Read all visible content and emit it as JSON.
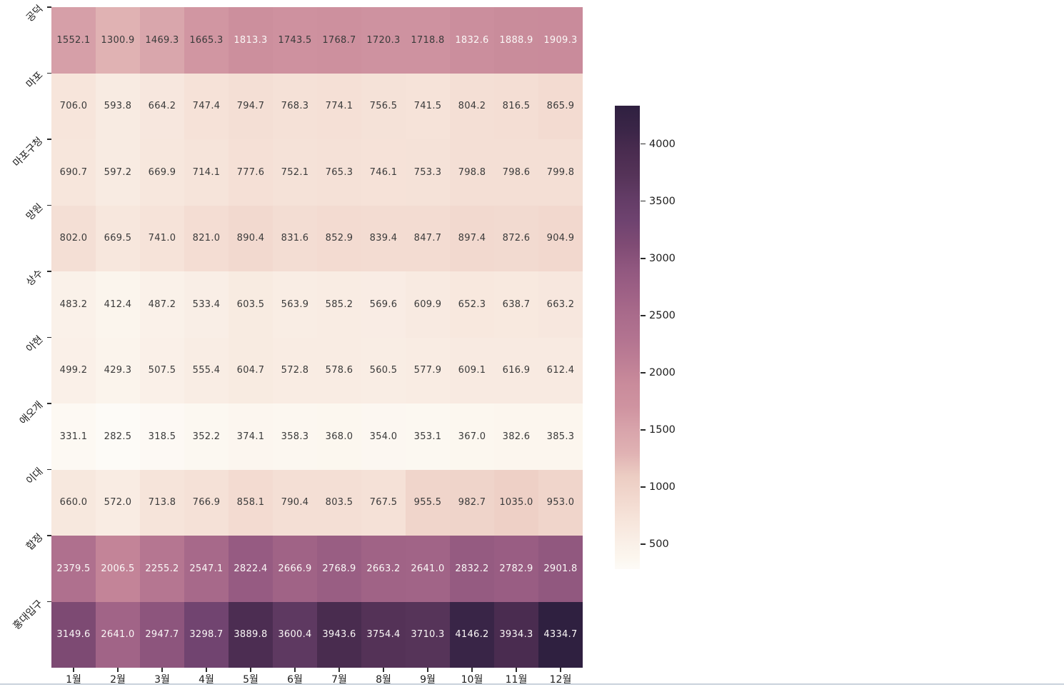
{
  "chart_data": {
    "type": "heatmap",
    "x_categories": [
      "1월",
      "2월",
      "3월",
      "4월",
      "5월",
      "6월",
      "7월",
      "8월",
      "9월",
      "10월",
      "11월",
      "12월"
    ],
    "y_categories": [
      "공덕",
      "마포",
      "마포구청",
      "망원",
      "상수",
      "아현",
      "애오개",
      "이대",
      "합정",
      "홍대입구"
    ],
    "values": [
      [
        1552.1,
        1300.9,
        1469.3,
        1665.3,
        1813.3,
        1743.5,
        1768.7,
        1720.3,
        1718.8,
        1832.6,
        1888.9,
        1909.3
      ],
      [
        706.0,
        593.8,
        664.2,
        747.4,
        794.7,
        768.3,
        774.1,
        756.5,
        741.5,
        804.2,
        816.5,
        865.9
      ],
      [
        690.7,
        597.2,
        669.9,
        714.1,
        777.6,
        752.1,
        765.3,
        746.1,
        753.3,
        798.8,
        798.6,
        799.8
      ],
      [
        802.0,
        669.5,
        741.0,
        821.0,
        890.4,
        831.6,
        852.9,
        839.4,
        847.7,
        897.4,
        872.6,
        904.9
      ],
      [
        483.2,
        412.4,
        487.2,
        533.4,
        603.5,
        563.9,
        585.2,
        569.6,
        609.9,
        652.3,
        638.7,
        663.2
      ],
      [
        499.2,
        429.3,
        507.5,
        555.4,
        604.7,
        572.8,
        578.6,
        560.5,
        577.9,
        609.1,
        616.9,
        612.4
      ],
      [
        331.1,
        282.5,
        318.5,
        352.2,
        374.1,
        358.3,
        368.0,
        354.0,
        353.1,
        367.0,
        382.6,
        385.3
      ],
      [
        660.0,
        572.0,
        713.8,
        766.9,
        858.1,
        790.4,
        803.5,
        767.5,
        955.5,
        982.7,
        1035.0,
        953.0
      ],
      [
        2379.5,
        2006.5,
        2255.2,
        2547.1,
        2822.4,
        2666.9,
        2768.9,
        2663.2,
        2641.0,
        2832.2,
        2782.9,
        2901.8
      ],
      [
        3149.6,
        2641.0,
        2947.7,
        3298.7,
        3889.8,
        3600.4,
        3943.6,
        3754.4,
        3710.3,
        4146.2,
        3934.3,
        4334.7
      ]
    ],
    "value_decimals": 1,
    "vmin": 282.5,
    "vmax": 4334.7,
    "colorbar_ticks": [
      500,
      1000,
      1500,
      2000,
      2500,
      3000,
      3500,
      4000
    ],
    "colorbar_position": "right",
    "grid": false,
    "annotation_dark_color": "#3a3a3a",
    "annotation_light_color": "#fbf8f7",
    "light_text_value_threshold": 1790,
    "tick_color": "#2b2b2b",
    "colormap_stops": [
      {
        "t": 0.0,
        "color": "#fdfbf7"
      },
      {
        "t": 0.025,
        "color": "#fcf6ee"
      },
      {
        "t": 0.05,
        "color": "#faf1e9"
      },
      {
        "t": 0.1,
        "color": "#f7e6dc"
      },
      {
        "t": 0.15,
        "color": "#f2d9cf"
      },
      {
        "t": 0.2,
        "color": "#eccdc3"
      },
      {
        "t": 0.25,
        "color": "#e0b2b3"
      },
      {
        "t": 0.3,
        "color": "#d8a4ab"
      },
      {
        "t": 0.35,
        "color": "#cf93a0"
      },
      {
        "t": 0.4,
        "color": "#c98b9b"
      },
      {
        "t": 0.45,
        "color": "#bd7e95"
      },
      {
        "t": 0.5,
        "color": "#b27390"
      },
      {
        "t": 0.55,
        "color": "#a96b8b"
      },
      {
        "t": 0.6,
        "color": "#9d6085"
      },
      {
        "t": 0.65,
        "color": "#90577f"
      },
      {
        "t": 0.7,
        "color": "#7f4b74"
      },
      {
        "t": 0.75,
        "color": "#6f4370"
      },
      {
        "t": 0.8,
        "color": "#633c66"
      },
      {
        "t": 0.85,
        "color": "#553358"
      },
      {
        "t": 0.9,
        "color": "#4a2c50"
      },
      {
        "t": 0.95,
        "color": "#3a2547"
      },
      {
        "t": 1.0,
        "color": "#2f2040"
      }
    ]
  }
}
